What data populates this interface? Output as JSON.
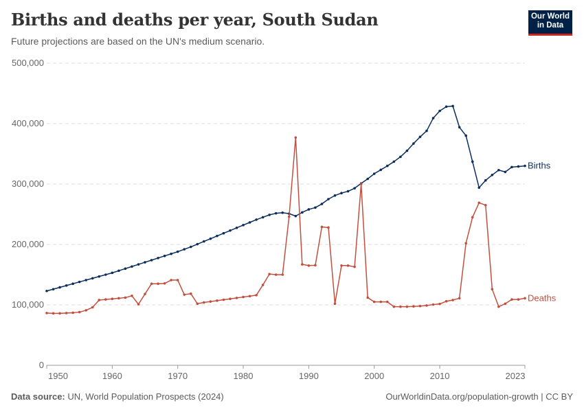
{
  "header": {
    "title": "Births and deaths per year, South Sudan",
    "subtitle": "Future projections are based on the UN's medium scenario."
  },
  "logo": {
    "line1": "Our World",
    "line2": "in Data"
  },
  "footer": {
    "source_label": "Data source:",
    "source_text": "UN, World Population Prospects (2024)",
    "url": "OurWorldinData.org/population-growth | CC BY"
  },
  "colors": {
    "births": "#0b2e5c",
    "deaths": "#c24f3e",
    "grid": "#dddddd",
    "axis": "#666666"
  },
  "chart_data": {
    "type": "line",
    "title": "Births and deaths per year, South Sudan",
    "subtitle": "Future projections are based on the UN's medium scenario.",
    "xlim": [
      1950,
      2023
    ],
    "ylim": [
      0,
      500000
    ],
    "x_ticks": [
      "1950",
      "1960",
      "1970",
      "1980",
      "1990",
      "2000",
      "2010",
      "2023"
    ],
    "y_ticks": [
      "0",
      "100,000",
      "200,000",
      "300,000",
      "400,000",
      "500,000"
    ],
    "y_tick_values": [
      0,
      100000,
      200000,
      300000,
      400000,
      500000
    ],
    "x_tick_values": [
      1950,
      1960,
      1970,
      1980,
      1990,
      2000,
      2010,
      2023
    ],
    "grid": true,
    "x": [
      1950,
      1951,
      1952,
      1953,
      1954,
      1955,
      1956,
      1957,
      1958,
      1959,
      1960,
      1961,
      1962,
      1963,
      1964,
      1965,
      1966,
      1967,
      1968,
      1969,
      1970,
      1971,
      1972,
      1973,
      1974,
      1975,
      1976,
      1977,
      1978,
      1979,
      1980,
      1981,
      1982,
      1983,
      1984,
      1985,
      1986,
      1987,
      1988,
      1989,
      1990,
      1991,
      1992,
      1993,
      1994,
      1995,
      1996,
      1997,
      1998,
      1999,
      2000,
      2001,
      2002,
      2003,
      2004,
      2005,
      2006,
      2007,
      2008,
      2009,
      2010,
      2011,
      2012,
      2013,
      2014,
      2015,
      2016,
      2017,
      2018,
      2019,
      2020,
      2021,
      2022,
      2023
    ],
    "series": [
      {
        "name": "Births",
        "values": [
          123000,
          126000,
          129000,
          132000,
          135000,
          138000,
          141000,
          144000,
          147000,
          150000,
          153000,
          156500,
          160000,
          163500,
          167000,
          170500,
          174000,
          177500,
          181000,
          184500,
          188000,
          192000,
          196000,
          200500,
          205000,
          209500,
          214000,
          218500,
          223000,
          227500,
          232000,
          236500,
          241000,
          245000,
          249000,
          251500,
          252500,
          251000,
          247000,
          253000,
          258000,
          261000,
          267000,
          275000,
          281000,
          285000,
          288000,
          293000,
          301000,
          308500,
          317000,
          323500,
          330000,
          337000,
          345000,
          355000,
          367000,
          378000,
          388000,
          409000,
          421000,
          428000,
          429000,
          394000,
          380000,
          337000,
          294000,
          306000,
          315000,
          323000,
          320000,
          328000,
          329000,
          330000
        ]
      },
      {
        "name": "Deaths",
        "values": [
          86500,
          86000,
          86000,
          86500,
          87000,
          88000,
          91000,
          96000,
          108000,
          109000,
          110000,
          111000,
          112000,
          115000,
          101000,
          118000,
          135000,
          135000,
          135500,
          141000,
          141000,
          117000,
          118500,
          102000,
          104000,
          105500,
          107000,
          108500,
          110000,
          111500,
          113000,
          114500,
          116000,
          133000,
          151000,
          150000,
          150000,
          246000,
          377000,
          167000,
          165000,
          165500,
          229000,
          228000,
          102000,
          165000,
          165000,
          163000,
          300000,
          112000,
          105000,
          105000,
          105000,
          97000,
          97000,
          97000,
          97500,
          98000,
          99000,
          100500,
          101500,
          106000,
          108000,
          111000,
          202000,
          245000,
          269000,
          265000,
          126000,
          97000,
          102000,
          109000,
          109000,
          111000
        ]
      }
    ]
  }
}
